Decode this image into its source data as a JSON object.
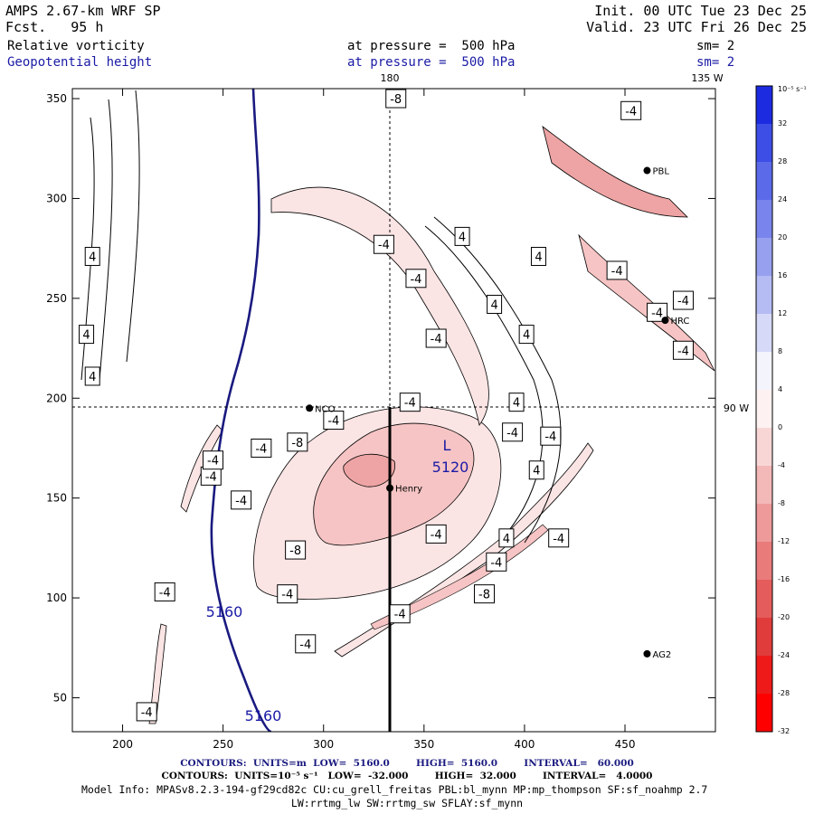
{
  "header": {
    "model": "AMPS 2.67-km WRF SP",
    "fcst_label": "Fcst.",
    "fcst_value": "95 h",
    "init": "Init. 00 UTC Tue 23 Dec 25",
    "valid": "Valid. 23 UTC Fri 26 Dec 25",
    "field1": "Relative vorticity",
    "field1_level": "at pressure =  500 hPa",
    "field1_sm": "sm= 2",
    "field2": "Geopotential height",
    "field2_level": "at pressure =  500 hPa",
    "field2_sm": "sm= 2"
  },
  "map_labels": {
    "lon_180": "180",
    "lon_135w": "135 W",
    "lon_90w": "90 W"
  },
  "stations": [
    {
      "name": "NCO",
      "x": 293,
      "y": 195
    },
    {
      "name": "Henry",
      "x": 333,
      "y": 155
    },
    {
      "name": "PBL",
      "x": 461,
      "y": 314
    },
    {
      "name": "HRC",
      "x": 470,
      "y": 239
    },
    {
      "name": "AG2",
      "x": 461,
      "y": 72
    }
  ],
  "chart_data": {
    "type": "contour",
    "xlim": [
      175,
      495
    ],
    "ylim": [
      33,
      355
    ],
    "xticks": [
      200,
      250,
      300,
      350,
      400,
      450
    ],
    "yticks": [
      50,
      100,
      150,
      200,
      250,
      300,
      350
    ],
    "crosshair": {
      "x": 333,
      "y": 195
    },
    "low_center": {
      "letter": "L",
      "value": "5120",
      "x": 358,
      "y": 170
    },
    "height_contour_labels": [
      "5160",
      "5160"
    ],
    "vorticity_labels": [
      {
        "text": "-8",
        "x": 336,
        "y": 350
      },
      {
        "text": "-4",
        "x": 330,
        "y": 277
      },
      {
        "text": "4",
        "x": 369,
        "y": 281
      },
      {
        "text": "4",
        "x": 407,
        "y": 271
      },
      {
        "text": "-4",
        "x": 446,
        "y": 264
      },
      {
        "text": "-4",
        "x": 346,
        "y": 260
      },
      {
        "text": "4",
        "x": 385,
        "y": 247
      },
      {
        "text": "-4",
        "x": 466,
        "y": 243
      },
      {
        "text": "-4",
        "x": 479,
        "y": 249
      },
      {
        "text": "-4",
        "x": 356,
        "y": 230
      },
      {
        "text": "4",
        "x": 401,
        "y": 232
      },
      {
        "text": "-4",
        "x": 479,
        "y": 224
      },
      {
        "text": "4",
        "x": 396,
        "y": 198
      },
      {
        "text": "-4",
        "x": 343,
        "y": 198
      },
      {
        "text": "-4",
        "x": 305,
        "y": 189
      },
      {
        "text": "-4",
        "x": 394,
        "y": 183
      },
      {
        "text": "-4",
        "x": 413,
        "y": 181
      },
      {
        "text": "-8",
        "x": 287,
        "y": 178
      },
      {
        "text": "-4",
        "x": 269,
        "y": 175
      },
      {
        "text": "4",
        "x": 406,
        "y": 164
      },
      {
        "text": "-4",
        "x": 244,
        "y": 161
      },
      {
        "text": "-4",
        "x": 259,
        "y": 149
      },
      {
        "text": "4",
        "x": 391,
        "y": 130
      },
      {
        "text": "-4",
        "x": 356,
        "y": 132
      },
      {
        "text": "-4",
        "x": 417,
        "y": 130
      },
      {
        "text": "-8",
        "x": 286,
        "y": 124
      },
      {
        "text": "-4",
        "x": 386,
        "y": 118
      },
      {
        "text": "-8",
        "x": 380,
        "y": 102
      },
      {
        "text": "-4",
        "x": 282,
        "y": 102
      },
      {
        "text": "-4",
        "x": 338,
        "y": 92
      },
      {
        "text": "-4",
        "x": 291,
        "y": 77
      },
      {
        "text": "-4",
        "x": 221,
        "y": 103
      },
      {
        "text": "-4",
        "x": 212,
        "y": 43
      },
      {
        "text": "4",
        "x": 185,
        "y": 271
      },
      {
        "text": "4",
        "x": 182,
        "y": 232
      },
      {
        "text": "4",
        "x": 185,
        "y": 211
      },
      {
        "text": "-4",
        "x": 453,
        "y": 344
      },
      {
        "text": "-4",
        "x": 245,
        "y": 169
      }
    ]
  },
  "colorbar": {
    "unit": "10⁻⁵ s⁻¹",
    "ticks": [
      "32",
      "28",
      "24",
      "20",
      "16",
      "12",
      "8",
      "4",
      "0",
      "-4",
      "-8",
      "-12",
      "-16",
      "-20",
      "-24",
      "-28",
      "-32"
    ],
    "colors": [
      "#1d2be0",
      "#3d4ee6",
      "#5b6ae9",
      "#7985ec",
      "#97a0ef",
      "#b5bbf3",
      "#d6d9f8",
      "#f4f4fd",
      "#fdf1f1",
      "#f9d6d6",
      "#f3b8b8",
      "#ee9a9a",
      "#e97b7b",
      "#e45c5c",
      "#e03c3c",
      "#ee1a1a",
      "#ff0000"
    ]
  },
  "footer": {
    "line1": "CONTOURS:  UNITS=m  LOW=  5160.0        HIGH=  5160.0        INTERVAL=   60.000",
    "line2": "CONTOURS:  UNITS=10⁻⁵ s⁻¹   LOW=  -32.000        HIGH=  32.000        INTERVAL=   4.0000",
    "line3": "Model Info: MPASv8.2.3-194-gf29cd82c CU:cu_grell_freitas PBL:bl_mynn MP:mp_thompson SF:sf_noahmp 2.7",
    "line4": "LW:rrtmg_lw SW:rrtmg_sw SFLAY:sf_mynn"
  }
}
